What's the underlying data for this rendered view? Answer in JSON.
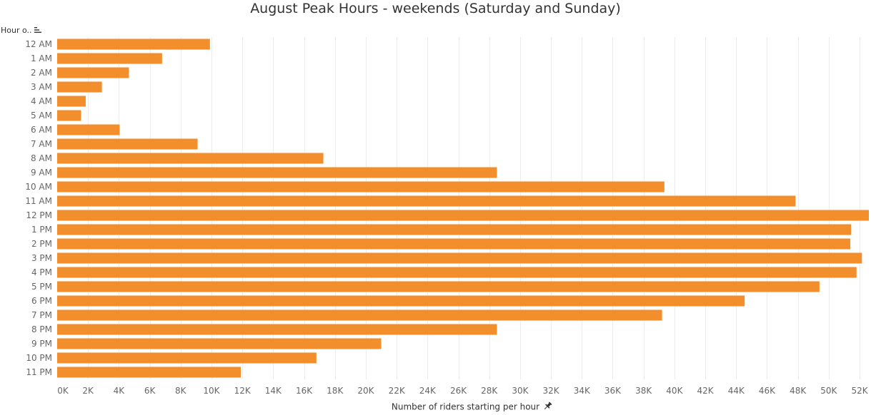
{
  "chart_data": {
    "type": "bar",
    "orientation": "horizontal",
    "title": "August Peak Hours - weekends (Saturday and Sunday)",
    "ylabel": "Hour o..",
    "xlabel": "Number of riders starting per hour",
    "categories": [
      "12 AM",
      "1 AM",
      "2 AM",
      "3 AM",
      "4 AM",
      "5 AM",
      "6 AM",
      "7 AM",
      "8 AM",
      "9 AM",
      "10 AM",
      "11 AM",
      "12 PM",
      "1 PM",
      "2 PM",
      "3 PM",
      "4 PM",
      "5 PM",
      "6 PM",
      "7 PM",
      "8 PM",
      "9 PM",
      "10 PM",
      "11 PM"
    ],
    "values": [
      9900,
      6800,
      4650,
      2900,
      1850,
      1550,
      4050,
      9100,
      17250,
      28500,
      39350,
      47850,
      52600,
      51450,
      51400,
      52150,
      51800,
      49400,
      44550,
      39200,
      28500,
      21000,
      16800,
      11900
    ],
    "xlim": [
      0,
      52600
    ],
    "xticks": [
      "0K",
      "2K",
      "4K",
      "6K",
      "8K",
      "10K",
      "12K",
      "14K",
      "16K",
      "18K",
      "20K",
      "22K",
      "24K",
      "26K",
      "28K",
      "30K",
      "32K",
      "34K",
      "36K",
      "38K",
      "40K",
      "42K",
      "44K",
      "46K",
      "48K",
      "50K",
      "52K"
    ],
    "xtick_values": [
      0,
      2000,
      4000,
      6000,
      8000,
      10000,
      12000,
      14000,
      16000,
      18000,
      20000,
      22000,
      24000,
      26000,
      28000,
      30000,
      32000,
      34000,
      36000,
      38000,
      40000,
      42000,
      44000,
      46000,
      48000,
      50000,
      52000
    ],
    "grid": true,
    "legend": "none",
    "bar_color": "#f28e2b"
  },
  "icons": {
    "sort": "sort-icon",
    "pin": "pin-icon"
  }
}
